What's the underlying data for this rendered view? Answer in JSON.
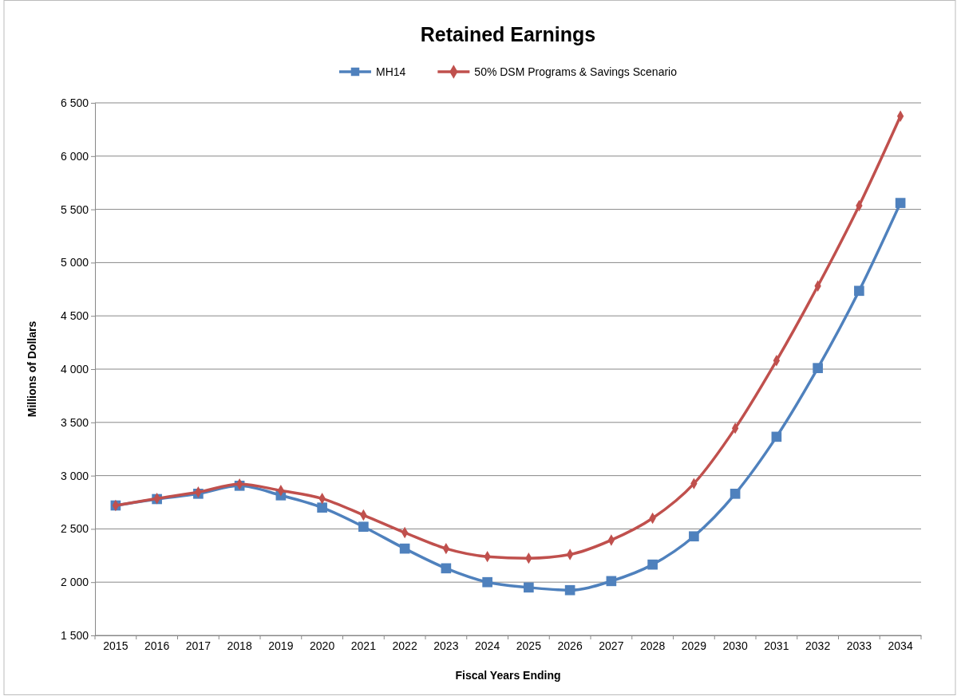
{
  "chart_data": {
    "type": "line",
    "title": "Retained Earnings",
    "xlabel": "Fiscal Years Ending",
    "ylabel": "Millions of Dollars",
    "categories": [
      "2015",
      "2016",
      "2017",
      "2018",
      "2019",
      "2020",
      "2021",
      "2022",
      "2023",
      "2024",
      "2025",
      "2026",
      "2027",
      "2028",
      "2029",
      "2030",
      "2031",
      "2032",
      "2033",
      "2034"
    ],
    "series": [
      {
        "name": "MH14",
        "color": "#4f81bd",
        "marker": "square",
        "values": [
          2720,
          2780,
          2830,
          2905,
          2815,
          2700,
          2520,
          2315,
          2130,
          2000,
          1950,
          1925,
          2010,
          2165,
          2430,
          2830,
          3365,
          4010,
          4735,
          5560
        ]
      },
      {
        "name": "50% DSM Programs & Savings Scenario",
        "color": "#c0504d",
        "marker": "diamond",
        "values": [
          2720,
          2785,
          2845,
          2920,
          2860,
          2785,
          2630,
          2465,
          2315,
          2240,
          2225,
          2260,
          2395,
          2600,
          2925,
          3445,
          4080,
          4780,
          5535,
          6375
        ]
      }
    ],
    "ylim": [
      1500,
      6500
    ],
    "yticks": [
      {
        "value": 1500,
        "label": "1 500"
      },
      {
        "value": 2000,
        "label": "2 000"
      },
      {
        "value": 2500,
        "label": "2 500"
      },
      {
        "value": 3000,
        "label": "3 000"
      },
      {
        "value": 3500,
        "label": "3 500"
      },
      {
        "value": 4000,
        "label": "4 000"
      },
      {
        "value": 4500,
        "label": "4 500"
      },
      {
        "value": 5000,
        "label": "5 000"
      },
      {
        "value": 5500,
        "label": "5 500"
      },
      {
        "value": 6000,
        "label": "6 000"
      },
      {
        "value": 6500,
        "label": "6 500"
      }
    ],
    "grid": "y",
    "legend": "top",
    "line_style": "solid"
  }
}
